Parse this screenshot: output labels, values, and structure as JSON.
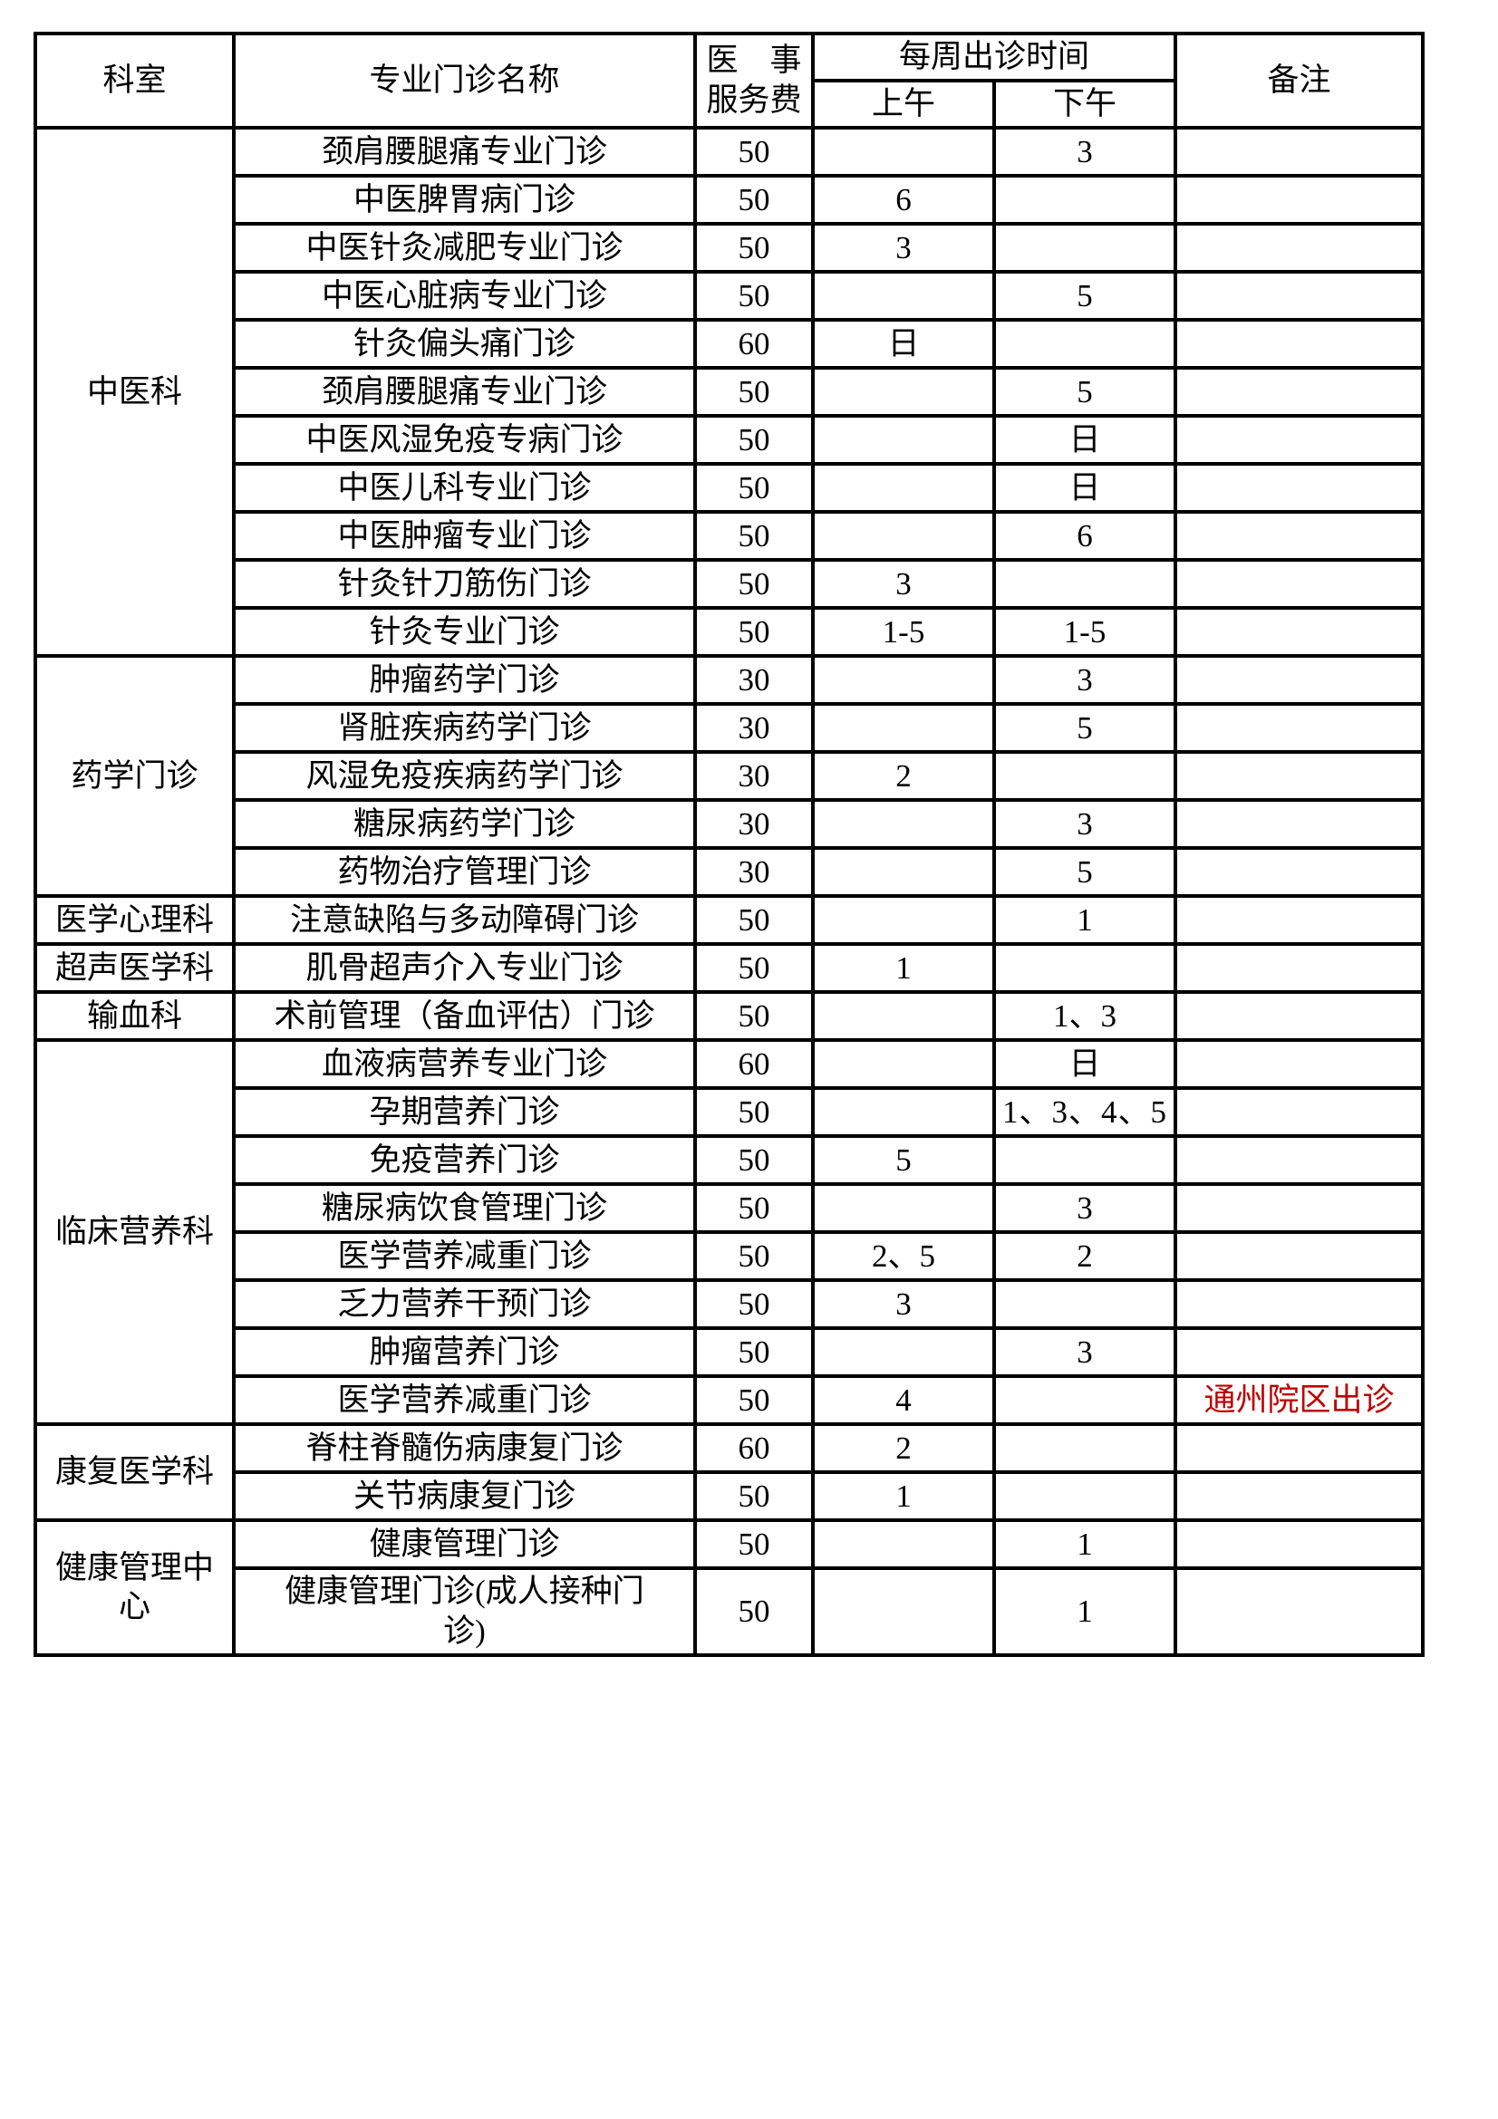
{
  "page": {
    "background": "#ffffff"
  },
  "colors": {
    "border": "#000000",
    "text": "#000000",
    "remark_red": "#C00000"
  },
  "header": {
    "col_department": "科室",
    "col_clinic_name": "专业门诊名称",
    "col_fee": "医　事\n服务费",
    "col_schedule": "每周出诊时间",
    "col_am": "上午",
    "col_pm": "下午",
    "col_remark": "备注"
  },
  "sections": [
    {
      "department": "中医科",
      "rows": [
        {
          "name": "颈肩腰腿痛专业门诊",
          "fee": "50",
          "am": "",
          "pm": "3",
          "remark": ""
        },
        {
          "name": "中医脾胃病门诊",
          "fee": "50",
          "am": "6",
          "pm": "",
          "remark": ""
        },
        {
          "name": "中医针灸减肥专业门诊",
          "fee": "50",
          "am": "3",
          "pm": "",
          "remark": ""
        },
        {
          "name": "中医心脏病专业门诊",
          "fee": "50",
          "am": "",
          "pm": "5",
          "remark": ""
        },
        {
          "name": "针灸偏头痛门诊",
          "fee": "60",
          "am": "日",
          "pm": "",
          "remark": ""
        },
        {
          "name": "颈肩腰腿痛专业门诊",
          "fee": "50",
          "am": "",
          "pm": "5",
          "remark": ""
        },
        {
          "name": "中医风湿免疫专病门诊",
          "fee": "50",
          "am": "",
          "pm": "日",
          "remark": ""
        },
        {
          "name": "中医儿科专业门诊",
          "fee": "50",
          "am": "",
          "pm": "日",
          "remark": ""
        },
        {
          "name": "中医肿瘤专业门诊",
          "fee": "50",
          "am": "",
          "pm": "6",
          "remark": ""
        },
        {
          "name": "针灸针刀筋伤门诊",
          "fee": "50",
          "am": "3",
          "pm": "",
          "remark": ""
        },
        {
          "name": "针灸专业门诊",
          "fee": "50",
          "am": "1-5",
          "pm": "1-5",
          "remark": ""
        }
      ]
    },
    {
      "department": "药学门诊",
      "rows": [
        {
          "name": "肿瘤药学门诊",
          "fee": "30",
          "am": "",
          "pm": "3",
          "remark": ""
        },
        {
          "name": "肾脏疾病药学门诊",
          "fee": "30",
          "am": "",
          "pm": "5",
          "remark": ""
        },
        {
          "name": "风湿免疫疾病药学门诊",
          "fee": "30",
          "am": "2",
          "pm": "",
          "remark": ""
        },
        {
          "name": "糖尿病药学门诊",
          "fee": "30",
          "am": "",
          "pm": "3",
          "remark": ""
        },
        {
          "name": "药物治疗管理门诊",
          "fee": "30",
          "am": "",
          "pm": "5",
          "remark": ""
        }
      ]
    },
    {
      "department": "医学心理科",
      "rows": [
        {
          "name": "注意缺陷与多动障碍门诊",
          "fee": "50",
          "am": "",
          "pm": "1",
          "remark": ""
        }
      ]
    },
    {
      "department": "超声医学科",
      "rows": [
        {
          "name": "肌骨超声介入专业门诊",
          "fee": "50",
          "am": "1",
          "pm": "",
          "remark": ""
        }
      ]
    },
    {
      "department": "输血科",
      "rows": [
        {
          "name": "术前管理（备血评估）门诊",
          "fee": "50",
          "am": "",
          "pm": "1、3",
          "remark": ""
        }
      ]
    },
    {
      "department": "临床营养科",
      "rows": [
        {
          "name": "血液病营养专业门诊",
          "fee": "60",
          "am": "",
          "pm": "日",
          "remark": ""
        },
        {
          "name": "孕期营养门诊",
          "fee": "50",
          "am": "",
          "pm": "1、3、4、5",
          "remark": ""
        },
        {
          "name": "免疫营养门诊",
          "fee": "50",
          "am": "5",
          "pm": "",
          "remark": ""
        },
        {
          "name": "糖尿病饮食管理门诊",
          "fee": "50",
          "am": "",
          "pm": "3",
          "remark": ""
        },
        {
          "name": "医学营养减重门诊",
          "fee": "50",
          "am": "2、5",
          "pm": "2",
          "remark": ""
        },
        {
          "name": "乏力营养干预门诊",
          "fee": "50",
          "am": "3",
          "pm": "",
          "remark": ""
        },
        {
          "name": "肿瘤营养门诊",
          "fee": "50",
          "am": "",
          "pm": "3",
          "remark": ""
        },
        {
          "name": "医学营养减重门诊",
          "fee": "50",
          "am": "4",
          "pm": "",
          "remark": "通州院区出诊"
        }
      ]
    },
    {
      "department": "康复医学科",
      "rows": [
        {
          "name": "脊柱脊髓伤病康复门诊",
          "fee": "60",
          "am": "2",
          "pm": "",
          "remark": ""
        },
        {
          "name": "关节病康复门诊",
          "fee": "50",
          "am": "1",
          "pm": "",
          "remark": ""
        }
      ]
    },
    {
      "department": "健康管理中\n心",
      "rows": [
        {
          "name": "健康管理门诊",
          "fee": "50",
          "am": "",
          "pm": "1",
          "remark": ""
        },
        {
          "name": "健康管理门诊(成人接种门\n诊)",
          "fee": "50",
          "am": "",
          "pm": "1",
          "remark": ""
        }
      ]
    }
  ]
}
